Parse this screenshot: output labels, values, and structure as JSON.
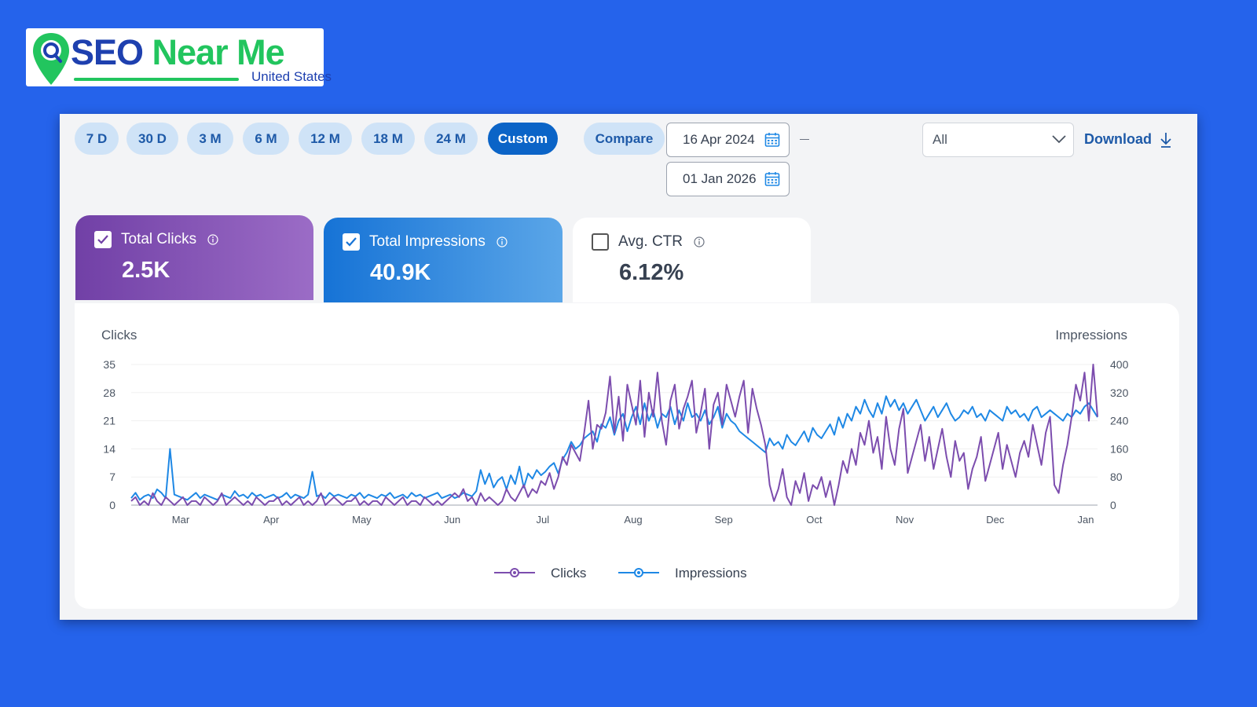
{
  "brand": {
    "title_part1": "SEO",
    "title_part2": " Near Me",
    "subtitle": "United States",
    "colors": {
      "blue": "#1E40AF",
      "green": "#22C55E",
      "page_bg": "#2563EB"
    }
  },
  "toolbar": {
    "ranges": [
      {
        "label": "7 D",
        "active": false
      },
      {
        "label": "30 D",
        "active": false
      },
      {
        "label": "3 M",
        "active": false
      },
      {
        "label": "6 M",
        "active": false
      },
      {
        "label": "12 M",
        "active": false
      },
      {
        "label": "18 M",
        "active": false
      },
      {
        "label": "24 M",
        "active": false
      },
      {
        "label": "Custom",
        "active": true
      }
    ],
    "compare_label": "Compare",
    "start_date": "16 Apr 2024",
    "end_date": "01 Jan 2026",
    "filter_value": "All",
    "download_label": "Download"
  },
  "metrics": {
    "clicks": {
      "label": "Total Clicks",
      "value": "2.5K",
      "checked": true
    },
    "impressions": {
      "label": "Total Impressions",
      "value": "40.9K",
      "checked": true
    },
    "ctr": {
      "label": "Avg. CTR",
      "value": "6.12%",
      "checked": false
    }
  },
  "chart_data": {
    "type": "line",
    "left_axis_label": "Clicks",
    "right_axis_label": "Impressions",
    "y_left_ticks": [
      "35",
      "28",
      "21",
      "14",
      "7",
      "0"
    ],
    "y_right_ticks": [
      "400",
      "320",
      "240",
      "160",
      "80",
      "0"
    ],
    "ylim_left": [
      0,
      35
    ],
    "ylim_right": [
      0,
      400
    ],
    "x_ticks": [
      "Mar",
      "Apr",
      "May",
      "Jun",
      "Jul",
      "Aug",
      "Sep",
      "Oct",
      "Nov",
      "Dec",
      "Jan"
    ],
    "legend_position": "bottom-center",
    "colors": {
      "clicks": "#7C4DAE",
      "impressions": "#1E88E5"
    },
    "series": [
      {
        "name": "Clicks",
        "axis": "left",
        "values": [
          1,
          2,
          0,
          1,
          0,
          3,
          1,
          0,
          2,
          1,
          0,
          1,
          2,
          0,
          1,
          1,
          0,
          2,
          1,
          0,
          1,
          3,
          0,
          1,
          2,
          1,
          0,
          1,
          0,
          2,
          1,
          0,
          1,
          1,
          2,
          0,
          1,
          0,
          1,
          2,
          0,
          1,
          0,
          1,
          3,
          0,
          1,
          2,
          1,
          0,
          1,
          1,
          2,
          0,
          1,
          0,
          1,
          1,
          0,
          2,
          1,
          0,
          1,
          2,
          0,
          1,
          1,
          0,
          2,
          1,
          0,
          1,
          0,
          1,
          2,
          3,
          2,
          4,
          1,
          2,
          0,
          3,
          1,
          2,
          1,
          0,
          1,
          4,
          2,
          1,
          3,
          5,
          2,
          4,
          3,
          6,
          5,
          8,
          4,
          7,
          12,
          10,
          15,
          13,
          11,
          18,
          26,
          14,
          20,
          19,
          23,
          32,
          18,
          27,
          16,
          30,
          25,
          20,
          31,
          17,
          28,
          22,
          33,
          21,
          15,
          26,
          30,
          19,
          24,
          27,
          31,
          18,
          23,
          29,
          14,
          25,
          28,
          20,
          30,
          26,
          22,
          27,
          31,
          18,
          29,
          24,
          20,
          15,
          5,
          1,
          4,
          9,
          2,
          0,
          6,
          3,
          8,
          1,
          5,
          4,
          7,
          2,
          6,
          0,
          5,
          11,
          8,
          14,
          10,
          18,
          15,
          21,
          13,
          17,
          9,
          22,
          14,
          10,
          19,
          24,
          8,
          12,
          16,
          20,
          11,
          17,
          9,
          14,
          19,
          12,
          7,
          16,
          11,
          13,
          4,
          9,
          12,
          17,
          6,
          10,
          14,
          18,
          9,
          15,
          11,
          7,
          13,
          16,
          12,
          20,
          15,
          10,
          18,
          22,
          5,
          3,
          10,
          15,
          22,
          30,
          26,
          33,
          21,
          35,
          22
        ]
      },
      {
        "name": "Impressions",
        "axis": "right",
        "values": [
          20,
          35,
          15,
          25,
          30,
          20,
          45,
          35,
          20,
          160,
          30,
          25,
          20,
          15,
          25,
          35,
          20,
          30,
          25,
          20,
          15,
          30,
          25,
          20,
          40,
          25,
          30,
          20,
          35,
          25,
          30,
          20,
          25,
          30,
          20,
          25,
          35,
          20,
          30,
          25,
          20,
          30,
          95,
          25,
          30,
          20,
          35,
          25,
          30,
          25,
          20,
          30,
          25,
          35,
          20,
          30,
          25,
          20,
          30,
          25,
          35,
          20,
          25,
          30,
          20,
          35,
          25,
          30,
          20,
          25,
          30,
          35,
          20,
          25,
          30,
          20,
          25,
          35,
          30,
          25,
          40,
          100,
          60,
          90,
          50,
          70,
          80,
          45,
          85,
          60,
          110,
          50,
          90,
          75,
          100,
          85,
          95,
          110,
          120,
          90,
          130,
          150,
          180,
          160,
          170,
          190,
          200,
          210,
          180,
          230,
          220,
          250,
          200,
          240,
          260,
          210,
          250,
          280,
          230,
          290,
          240,
          270,
          220,
          260,
          250,
          280,
          230,
          270,
          240,
          290,
          250,
          260,
          240,
          270,
          230,
          250,
          280,
          220,
          260,
          240,
          230,
          210,
          200,
          190,
          180,
          170,
          160,
          150,
          190,
          170,
          180,
          160,
          200,
          180,
          170,
          190,
          210,
          180,
          220,
          200,
          190,
          210,
          230,
          200,
          250,
          220,
          260,
          240,
          280,
          260,
          300,
          270,
          250,
          290,
          260,
          310,
          280,
          300,
          270,
          290,
          260,
          280,
          300,
          270,
          240,
          260,
          280,
          250,
          270,
          290,
          260,
          240,
          250,
          270,
          260,
          280,
          250,
          260,
          240,
          270,
          260,
          250,
          240,
          280,
          260,
          270,
          250,
          260,
          240,
          270,
          280,
          250,
          260,
          270,
          260,
          250,
          240,
          260,
          250,
          270,
          260,
          280,
          290,
          270,
          250
        ]
      }
    ]
  }
}
